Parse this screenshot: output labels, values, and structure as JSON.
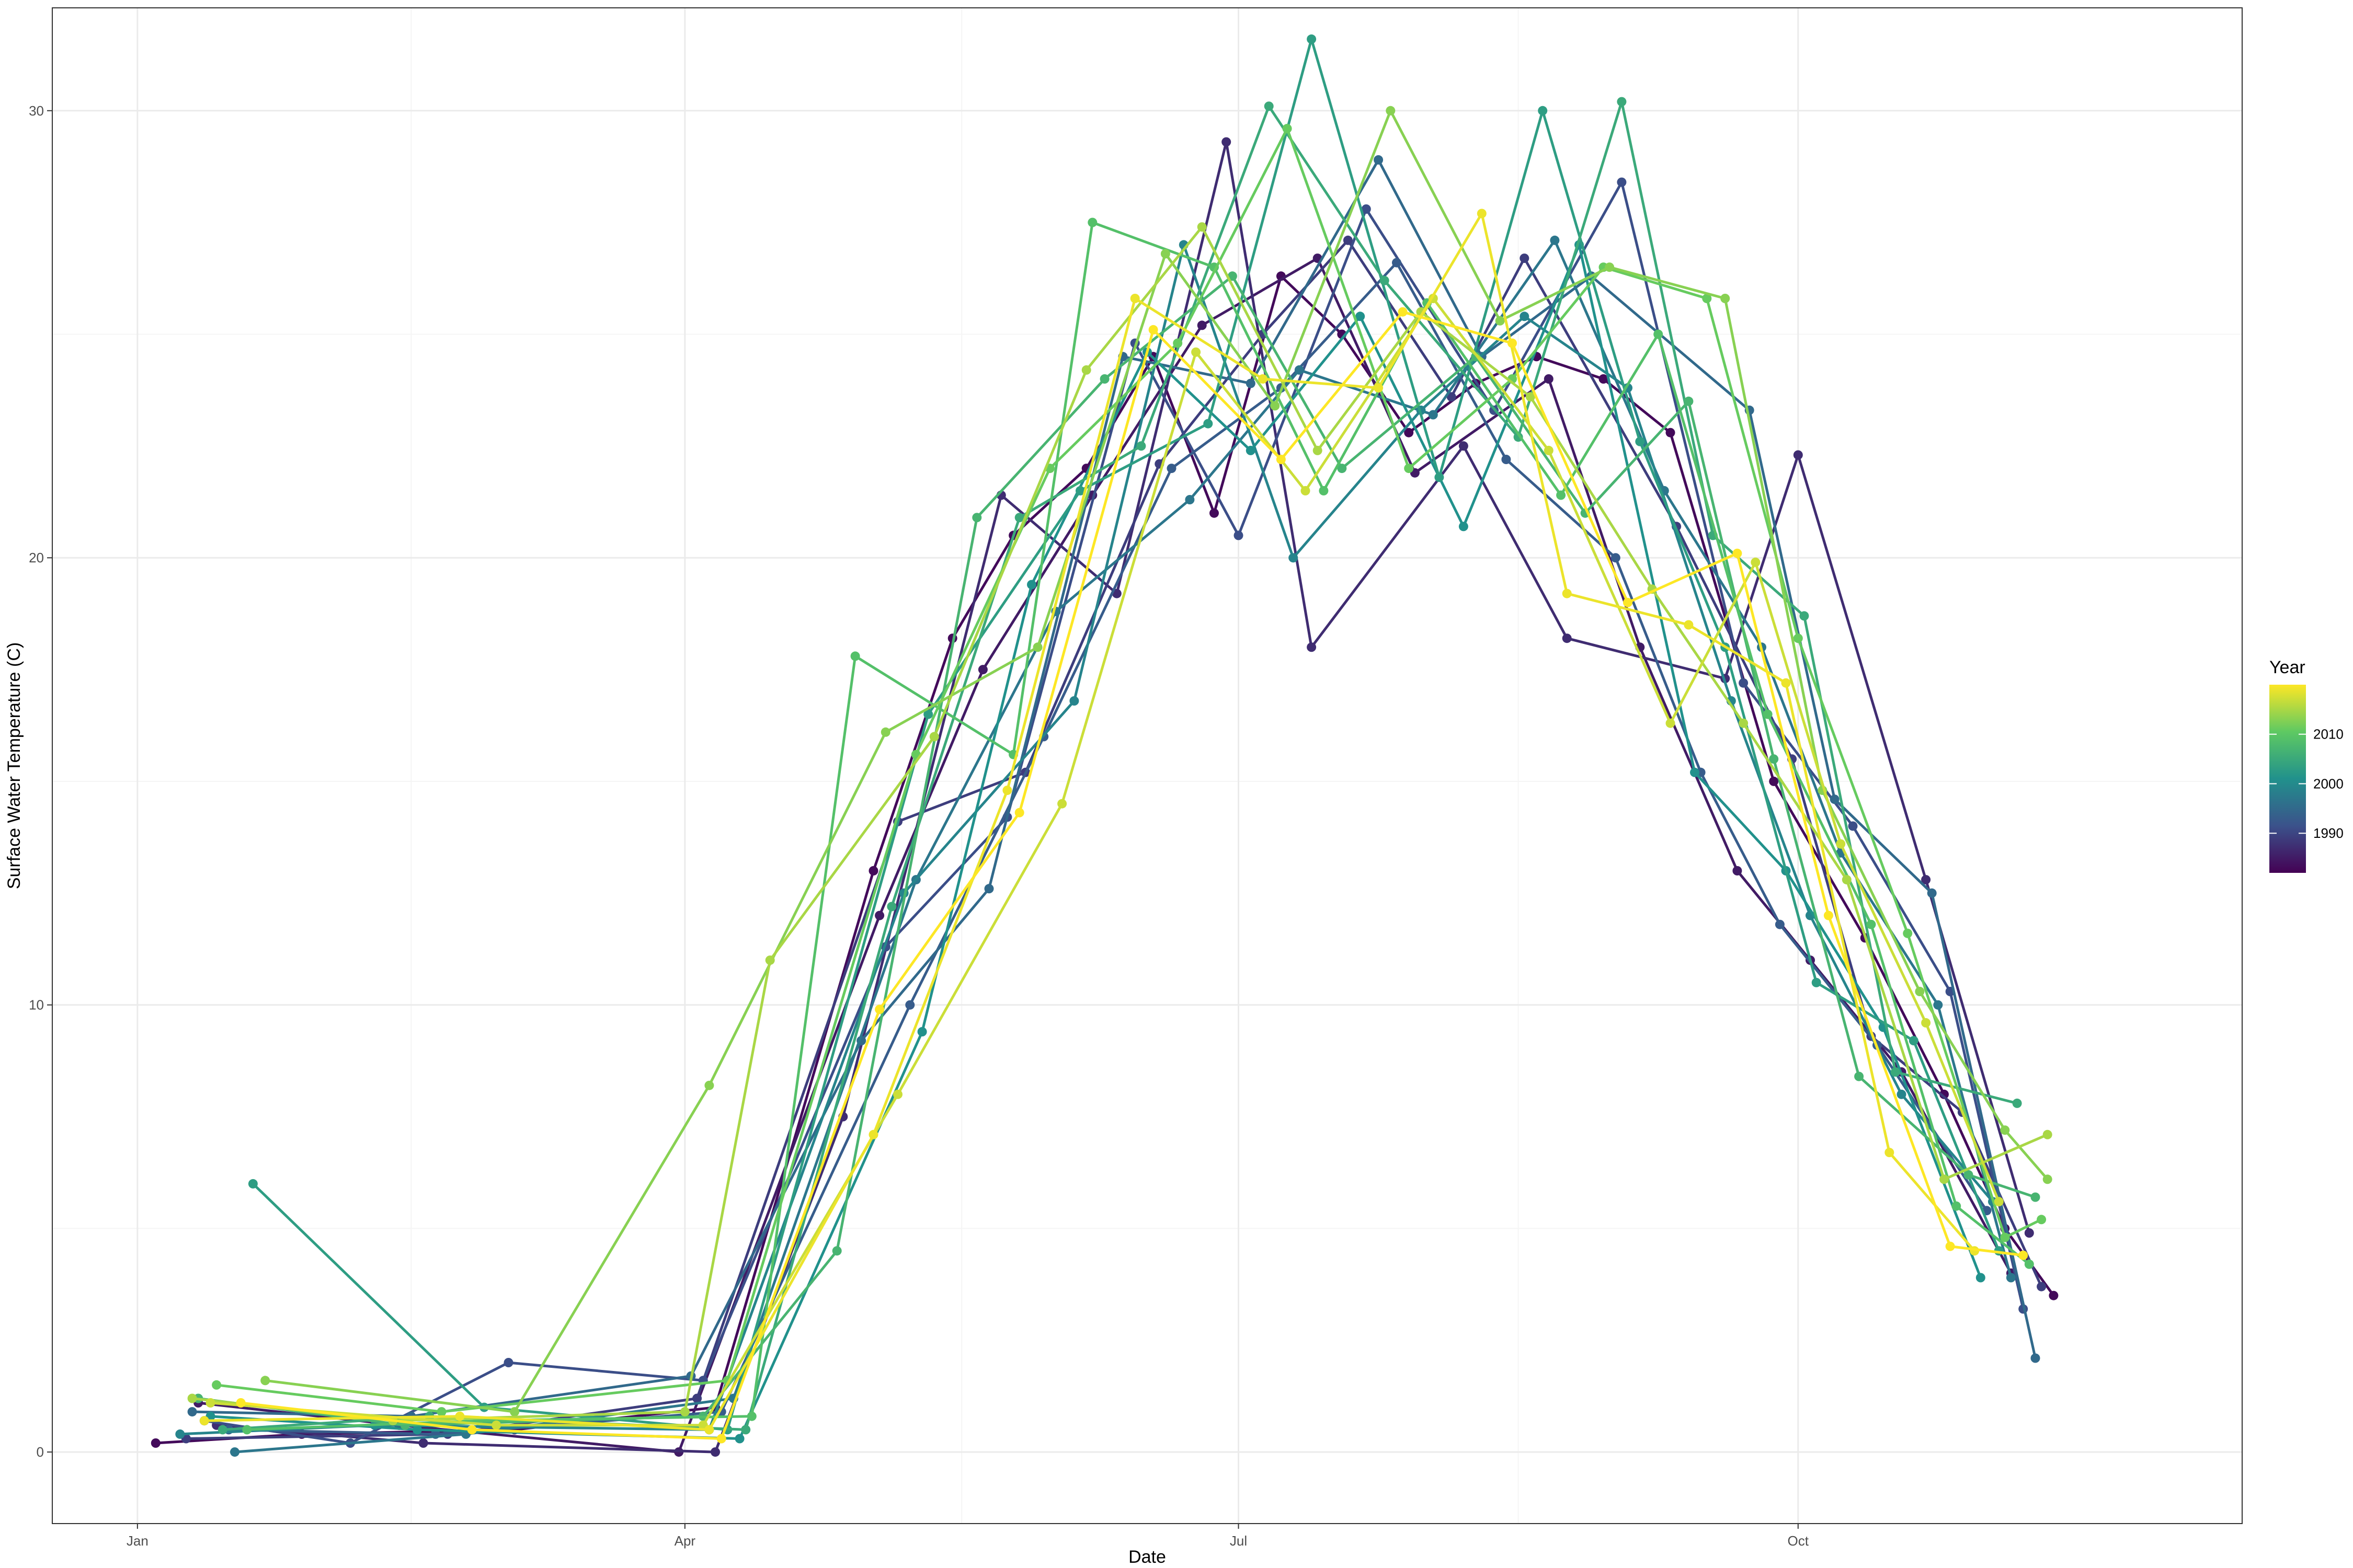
{
  "chart_data": {
    "type": "line",
    "title": "",
    "xlabel": "Date",
    "ylabel": "Surface Water Temperature (C)",
    "x_ticks": [
      "Jan",
      "Apr",
      "Jul",
      "Oct"
    ],
    "x_tick_doy": [
      1,
      91,
      182,
      274
    ],
    "xlim_doy": [
      -13,
      347
    ],
    "y_ticks": [
      0,
      10,
      20,
      30
    ],
    "ylim": [
      -1.6,
      32.3
    ],
    "grid": true,
    "legend": {
      "title": "Year",
      "type": "colorbar",
      "position": "right",
      "range": [
        1982,
        2020
      ],
      "labels": [
        "2010",
        "2000",
        "1990"
      ],
      "label_years": [
        2010,
        2000,
        1990
      ]
    },
    "colors": {
      "gradient": [
        "#440154",
        "#3b528b",
        "#21918c",
        "#5ec962",
        "#fde725"
      ],
      "panel_border": "#333333",
      "grid_major": "#ebebeb",
      "grid_minor": "#f5f5f5"
    },
    "series": [
      {
        "year": 1983,
        "x": [
          4,
          28,
          63,
          96,
          122,
          135,
          145,
          157,
          168,
          178,
          189,
          199,
          210,
          221,
          231,
          242,
          253,
          270,
          285,
          298,
          308,
          316
        ],
        "y": [
          0.2,
          0.4,
          0.5,
          1.0,
          13.0,
          18.2,
          20.5,
          22.0,
          24.5,
          21.0,
          26.3,
          25.0,
          22.8,
          23.9,
          24.5,
          24.0,
          22.8,
          15.0,
          11.5,
          8.0,
          5.0,
          3.5
        ]
      },
      {
        "year": 1985,
        "x": [
          11,
          44,
          90,
          123,
          140,
          158,
          176,
          195,
          211,
          233,
          248,
          264,
          276,
          291,
          309
        ],
        "y": [
          1.1,
          0.6,
          0.0,
          12.0,
          17.5,
          21.4,
          25.2,
          26.7,
          21.9,
          24.0,
          18.0,
          13.0,
          11.0,
          8.5,
          4.0
        ]
      },
      {
        "year": 1987,
        "x": [
          14,
          48,
          96,
          117,
          143,
          162,
          180,
          194,
          219,
          236,
          262,
          274,
          295,
          312
        ],
        "y": [
          0.6,
          0.2,
          0.0,
          7.5,
          21.4,
          19.2,
          29.3,
          18.0,
          22.5,
          18.2,
          17.3,
          22.3,
          12.8,
          4.9
        ]
      },
      {
        "year": 1989,
        "x": [
          9,
          52,
          93,
          126,
          147,
          169,
          186,
          200,
          217,
          229,
          254,
          273,
          286,
          301,
          314
        ],
        "y": [
          0.3,
          0.4,
          1.2,
          14.1,
          15.2,
          22.1,
          25.0,
          27.1,
          23.6,
          26.7,
          20.7,
          15.5,
          9.3,
          7.6,
          3.7
        ]
      },
      {
        "year": 1991,
        "x": [
          12,
          36,
          62,
          94,
          124,
          144,
          165,
          182,
          203,
          224,
          245,
          265,
          283,
          299,
          311
        ],
        "y": [
          0.7,
          0.2,
          2.0,
          1.6,
          11.3,
          14.2,
          24.8,
          20.5,
          27.8,
          23.3,
          28.4,
          17.2,
          14.0,
          10.3,
          3.2
        ]
      },
      {
        "year": 1993,
        "x": [
          16,
          50,
          97,
          128,
          150,
          171,
          189,
          208,
          226,
          244,
          258,
          271,
          287,
          305
        ],
        "y": [
          0.5,
          0.4,
          0.9,
          10.0,
          16.0,
          22.0,
          23.8,
          26.6,
          22.2,
          20.0,
          15.2,
          11.8,
          9.1,
          5.4
        ]
      },
      {
        "year": 1995,
        "x": [
          10,
          46,
          92,
          120,
          141,
          163,
          184,
          205,
          222,
          240,
          266,
          280,
          296,
          313
        ],
        "y": [
          0.9,
          0.8,
          1.7,
          9.2,
          12.6,
          24.5,
          23.9,
          28.9,
          24.5,
          26.3,
          23.3,
          14.6,
          12.5,
          2.1
        ]
      },
      {
        "year": 1997,
        "x": [
          17,
          55,
          99,
          129,
          152,
          174,
          192,
          214,
          234,
          252,
          268,
          281,
          297,
          309
        ],
        "y": [
          0.0,
          0.4,
          1.2,
          12.8,
          18.8,
          21.3,
          24.2,
          23.2,
          27.1,
          21.5,
          18.0,
          13.4,
          10.0,
          3.9
        ]
      },
      {
        "year": 1999,
        "x": [
          8,
          40,
          95,
          127,
          155,
          173,
          191,
          212,
          229,
          246,
          263,
          276,
          291,
          306
        ],
        "y": [
          0.4,
          0.6,
          0.5,
          12.5,
          16.8,
          27.0,
          20.0,
          23.3,
          25.4,
          23.8,
          16.8,
          12.0,
          8.0,
          5.6
        ]
      },
      {
        "year": 2001,
        "x": [
          13,
          47,
          100,
          130,
          148,
          167,
          184,
          202,
          219,
          238,
          257,
          272,
          288,
          304
        ],
        "y": [
          0.8,
          0.5,
          0.3,
          9.4,
          19.4,
          24.6,
          22.4,
          25.4,
          20.7,
          27.0,
          15.2,
          13.0,
          9.5,
          3.9
        ]
      },
      {
        "year": 2003,
        "x": [
          20,
          58,
          98,
          131,
          156,
          177,
          194,
          215,
          232,
          248,
          262,
          277,
          293,
          307
        ],
        "y": [
          6.0,
          1.0,
          0.5,
          16.5,
          21.5,
          23.0,
          31.6,
          21.8,
          30.0,
          22.6,
          18.0,
          10.5,
          9.2,
          4.5
        ]
      },
      {
        "year": 2005,
        "x": [
          15,
          49,
          101,
          125,
          146,
          166,
          187,
          206,
          228,
          245,
          260,
          275,
          290,
          310
        ],
        "y": [
          0.5,
          0.8,
          0.5,
          12.2,
          20.9,
          22.5,
          30.1,
          26.2,
          22.7,
          30.2,
          20.5,
          18.7,
          8.5,
          7.8
        ]
      },
      {
        "year": 2007,
        "x": [
          11,
          45,
          94,
          116,
          139,
          160,
          181,
          199,
          221,
          239,
          256,
          270,
          284,
          302,
          313
        ],
        "y": [
          1.2,
          0.6,
          0.8,
          4.5,
          20.9,
          24.0,
          26.3,
          22.0,
          24.5,
          21.0,
          23.5,
          15.5,
          8.4,
          6.2,
          5.7
        ]
      },
      {
        "year": 2009,
        "x": [
          19,
          57,
          102,
          119,
          145,
          158,
          178,
          196,
          213,
          235,
          251,
          269,
          286,
          300,
          312
        ],
        "y": [
          0.5,
          0.7,
          0.8,
          17.8,
          15.6,
          27.5,
          26.5,
          21.5,
          25.7,
          21.4,
          25.0,
          16.5,
          11.8,
          5.5,
          4.2
        ]
      },
      {
        "year": 2011,
        "x": [
          14,
          51,
          98,
          129,
          151,
          172,
          190,
          210,
          227,
          242,
          259,
          274,
          292,
          308,
          314
        ],
        "y": [
          1.5,
          0.9,
          1.6,
          15.6,
          22.0,
          24.8,
          29.6,
          22.0,
          24.0,
          26.5,
          25.8,
          18.2,
          11.6,
          4.8,
          5.2
        ]
      },
      {
        "year": 2013,
        "x": [
          22,
          63,
          95,
          124,
          149,
          170,
          188,
          207,
          225,
          243,
          262,
          278,
          294,
          308,
          315
        ],
        "y": [
          1.6,
          0.9,
          8.2,
          16.1,
          18.0,
          26.8,
          23.4,
          30.0,
          25.3,
          26.5,
          25.8,
          14.8,
          10.3,
          7.2,
          6.1
        ]
      },
      {
        "year": 2015,
        "x": [
          10,
          43,
          91,
          105,
          132,
          157,
          176,
          195,
          212,
          230,
          250,
          265,
          282,
          298,
          315
        ],
        "y": [
          1.2,
          0.7,
          0.9,
          11.0,
          16.0,
          24.2,
          27.4,
          22.4,
          25.5,
          23.6,
          19.3,
          16.3,
          12.8,
          6.1,
          7.1
        ]
      },
      {
        "year": 2017,
        "x": [
          13,
          60,
          94,
          126,
          153,
          175,
          193,
          214,
          233,
          253,
          267,
          281,
          295,
          307
        ],
        "y": [
          1.1,
          0.6,
          0.6,
          8.0,
          14.5,
          24.6,
          21.5,
          25.8,
          22.4,
          16.3,
          19.9,
          13.6,
          9.6,
          5.6
        ]
      },
      {
        "year": 2019,
        "x": [
          12,
          54,
          95,
          122,
          144,
          165,
          186,
          205,
          222,
          236,
          256,
          272,
          289,
          303
        ],
        "y": [
          0.7,
          0.8,
          0.5,
          7.1,
          14.8,
          25.8,
          24.0,
          23.8,
          27.7,
          19.2,
          18.5,
          17.2,
          6.7,
          4.5
        ]
      },
      {
        "year": 2020,
        "x": [
          18,
          56,
          97,
          123,
          146,
          168,
          189,
          209,
          227,
          246,
          264,
          279,
          299,
          311
        ],
        "y": [
          1.1,
          0.5,
          0.3,
          9.9,
          14.3,
          25.1,
          22.2,
          25.5,
          24.8,
          19.0,
          20.1,
          12.0,
          4.6,
          4.4
        ]
      }
    ]
  }
}
